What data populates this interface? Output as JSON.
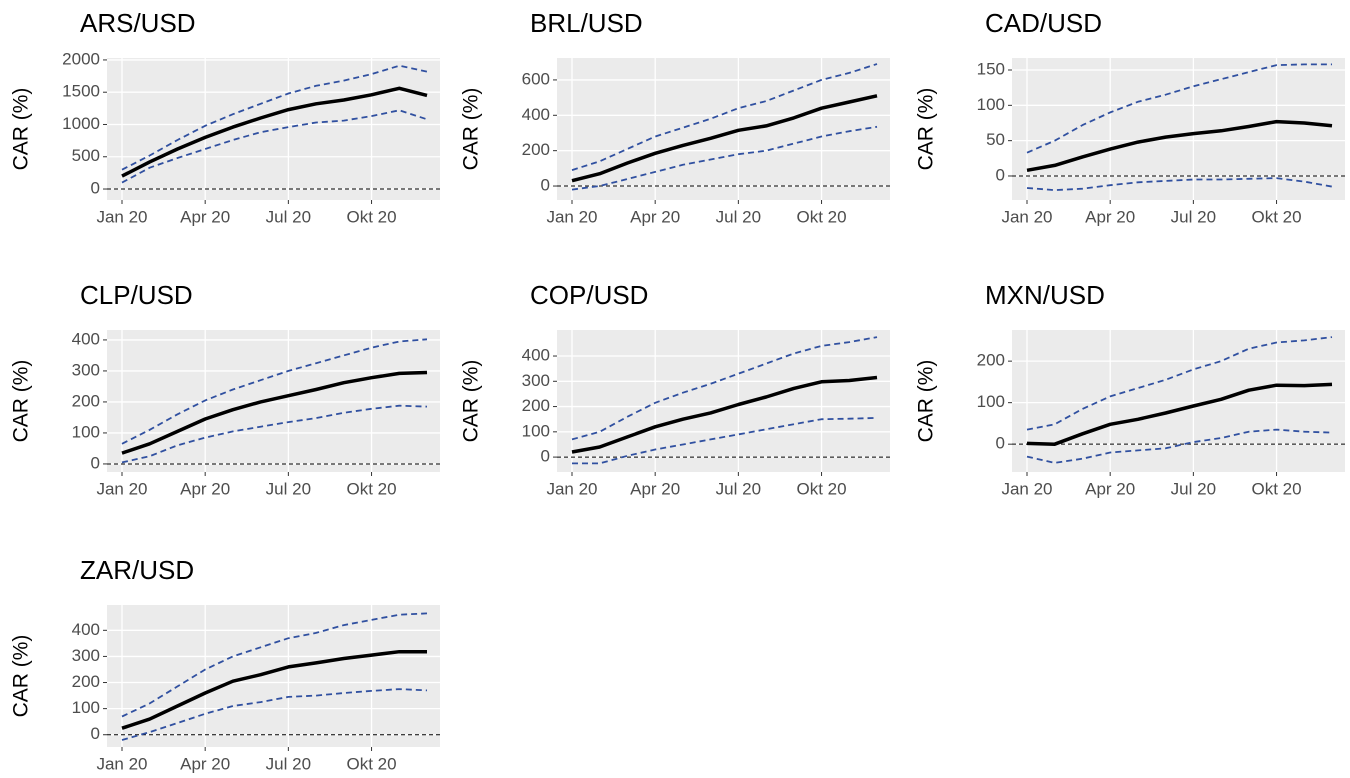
{
  "chart_data": [
    {
      "type": "line",
      "title": "ARS/USD",
      "y_label": "CAR (%)",
      "categories": [
        "Jan 20",
        null,
        null,
        "Apr 20",
        null,
        null,
        "Jul 20",
        null,
        null,
        "Okt 20",
        null,
        null
      ],
      "ylim": [
        -170,
        2030
      ],
      "yticks": [
        0,
        500,
        1000,
        1500,
        2000
      ],
      "hline": 0,
      "grid": true,
      "series": [
        {
          "color": "#000000",
          "line_style": "solid",
          "values": [
            200,
            420,
            620,
            800,
            960,
            1100,
            1230,
            1320,
            1380,
            1460,
            1560,
            1450
          ]
        },
        {
          "color": "#3050a0",
          "line_style": "dashed",
          "values": [
            300,
            520,
            760,
            980,
            1160,
            1320,
            1480,
            1600,
            1680,
            1780,
            1910,
            1820
          ]
        },
        {
          "color": "#3050a0",
          "line_style": "dashed",
          "values": [
            100,
            330,
            480,
            620,
            760,
            880,
            960,
            1030,
            1060,
            1130,
            1220,
            1080
          ]
        }
      ]
    },
    {
      "type": "line",
      "title": "BRL/USD",
      "y_label": "CAR (%)",
      "categories": [
        "Jan 20",
        null,
        null,
        "Apr 20",
        null,
        null,
        "Jul 20",
        null,
        null,
        "Okt 20",
        null,
        null
      ],
      "ylim": [
        -79,
        724
      ],
      "yticks": [
        0,
        200,
        400,
        600
      ],
      "hline": 0,
      "grid": true,
      "series": [
        {
          "color": "#000000",
          "line_style": "solid",
          "values": [
            30,
            70,
            130,
            185,
            230,
            270,
            315,
            340,
            385,
            440,
            475,
            510
          ]
        },
        {
          "color": "#3050a0",
          "line_style": "dashed",
          "values": [
            90,
            140,
            210,
            280,
            330,
            380,
            440,
            480,
            540,
            600,
            640,
            690
          ]
        },
        {
          "color": "#3050a0",
          "line_style": "dashed",
          "values": [
            -20,
            0,
            40,
            80,
            120,
            150,
            180,
            200,
            240,
            280,
            310,
            335
          ]
        }
      ]
    },
    {
      "type": "line",
      "title": "CAD/USD",
      "y_label": "CAR (%)",
      "categories": [
        "Jan 20",
        null,
        null,
        "Apr 20",
        null,
        null,
        "Jul 20",
        null,
        null,
        "Okt 20",
        null,
        null
      ],
      "ylim": [
        -34,
        167
      ],
      "yticks": [
        0,
        50,
        100,
        150
      ],
      "hline": 0,
      "grid": true,
      "series": [
        {
          "color": "#000000",
          "line_style": "solid",
          "values": [
            8,
            15,
            27,
            38,
            48,
            55,
            60,
            64,
            70,
            77,
            75,
            71
          ]
        },
        {
          "color": "#3050a0",
          "line_style": "dashed",
          "values": [
            33,
            50,
            72,
            90,
            105,
            115,
            127,
            137,
            147,
            157,
            158,
            158
          ]
        },
        {
          "color": "#3050a0",
          "line_style": "dashed",
          "values": [
            -17,
            -20,
            -18,
            -13,
            -9,
            -7,
            -5,
            -5,
            -4,
            -3,
            -8,
            -15
          ]
        }
      ]
    },
    {
      "type": "line",
      "title": "CLP/USD",
      "y_label": "CAR (%)",
      "categories": [
        "Jan 20",
        null,
        null,
        "Apr 20",
        null,
        null,
        "Jul 20",
        null,
        null,
        "Okt 20",
        null,
        null
      ],
      "ylim": [
        -26,
        432
      ],
      "yticks": [
        0,
        100,
        200,
        300,
        400
      ],
      "hline": 0,
      "grid": true,
      "series": [
        {
          "color": "#000000",
          "line_style": "solid",
          "values": [
            35,
            65,
            105,
            145,
            175,
            200,
            220,
            240,
            262,
            278,
            292,
            295
          ]
        },
        {
          "color": "#3050a0",
          "line_style": "dashed",
          "values": [
            65,
            110,
            160,
            205,
            240,
            270,
            300,
            325,
            350,
            375,
            395,
            402
          ]
        },
        {
          "color": "#3050a0",
          "line_style": "dashed",
          "values": [
            5,
            25,
            60,
            85,
            105,
            120,
            135,
            148,
            165,
            178,
            188,
            185
          ]
        }
      ]
    },
    {
      "type": "line",
      "title": "COP/USD",
      "y_label": "CAR (%)",
      "categories": [
        "Jan 20",
        null,
        null,
        "Apr 20",
        null,
        null,
        "Jul 20",
        null,
        null,
        "Okt 20",
        null,
        null
      ],
      "ylim": [
        -59,
        503
      ],
      "yticks": [
        0,
        100,
        200,
        300,
        400
      ],
      "hline": 0,
      "grid": true,
      "series": [
        {
          "color": "#000000",
          "line_style": "solid",
          "values": [
            20,
            40,
            80,
            120,
            150,
            175,
            208,
            238,
            272,
            298,
            303,
            315
          ]
        },
        {
          "color": "#3050a0",
          "line_style": "dashed",
          "values": [
            70,
            100,
            160,
            215,
            255,
            290,
            330,
            370,
            410,
            440,
            455,
            475
          ]
        },
        {
          "color": "#3050a0",
          "line_style": "dashed",
          "values": [
            -25,
            -25,
            5,
            30,
            50,
            70,
            90,
            110,
            130,
            150,
            152,
            155
          ]
        }
      ]
    },
    {
      "type": "line",
      "title": "MXN/USD",
      "y_label": "CAR (%)",
      "categories": [
        "Jan 20",
        null,
        null,
        "Apr 20",
        null,
        null,
        "Jul 20",
        null,
        null,
        "Okt 20",
        null,
        null
      ],
      "ylim": [
        -67,
        275
      ],
      "yticks": [
        0,
        100,
        200
      ],
      "hline": 0,
      "grid": true,
      "series": [
        {
          "color": "#000000",
          "line_style": "solid",
          "values": [
            2,
            0,
            25,
            48,
            60,
            75,
            92,
            108,
            130,
            142,
            141,
            144
          ]
        },
        {
          "color": "#3050a0",
          "line_style": "dashed",
          "values": [
            35,
            48,
            85,
            115,
            135,
            155,
            180,
            200,
            230,
            245,
            250,
            258
          ]
        },
        {
          "color": "#3050a0",
          "line_style": "dashed",
          "values": [
            -30,
            -45,
            -35,
            -20,
            -15,
            -10,
            5,
            15,
            30,
            35,
            30,
            28
          ]
        }
      ]
    },
    {
      "type": "line",
      "title": "ZAR/USD",
      "y_label": "CAR (%)",
      "categories": [
        "Jan 20",
        null,
        null,
        "Apr 20",
        null,
        null,
        "Jul 20",
        null,
        null,
        "Okt 20",
        null,
        null
      ],
      "ylim": [
        -47,
        497
      ],
      "yticks": [
        0,
        100,
        200,
        300,
        400
      ],
      "hline": 0,
      "grid": true,
      "series": [
        {
          "color": "#000000",
          "line_style": "solid",
          "values": [
            25,
            60,
            110,
            160,
            205,
            230,
            260,
            275,
            292,
            305,
            318,
            318
          ]
        },
        {
          "color": "#3050a0",
          "line_style": "dashed",
          "values": [
            70,
            120,
            185,
            250,
            300,
            335,
            370,
            390,
            420,
            440,
            460,
            465
          ]
        },
        {
          "color": "#3050a0",
          "line_style": "dashed",
          "values": [
            -20,
            10,
            45,
            80,
            110,
            125,
            145,
            150,
            160,
            168,
            175,
            170
          ]
        }
      ]
    }
  ]
}
